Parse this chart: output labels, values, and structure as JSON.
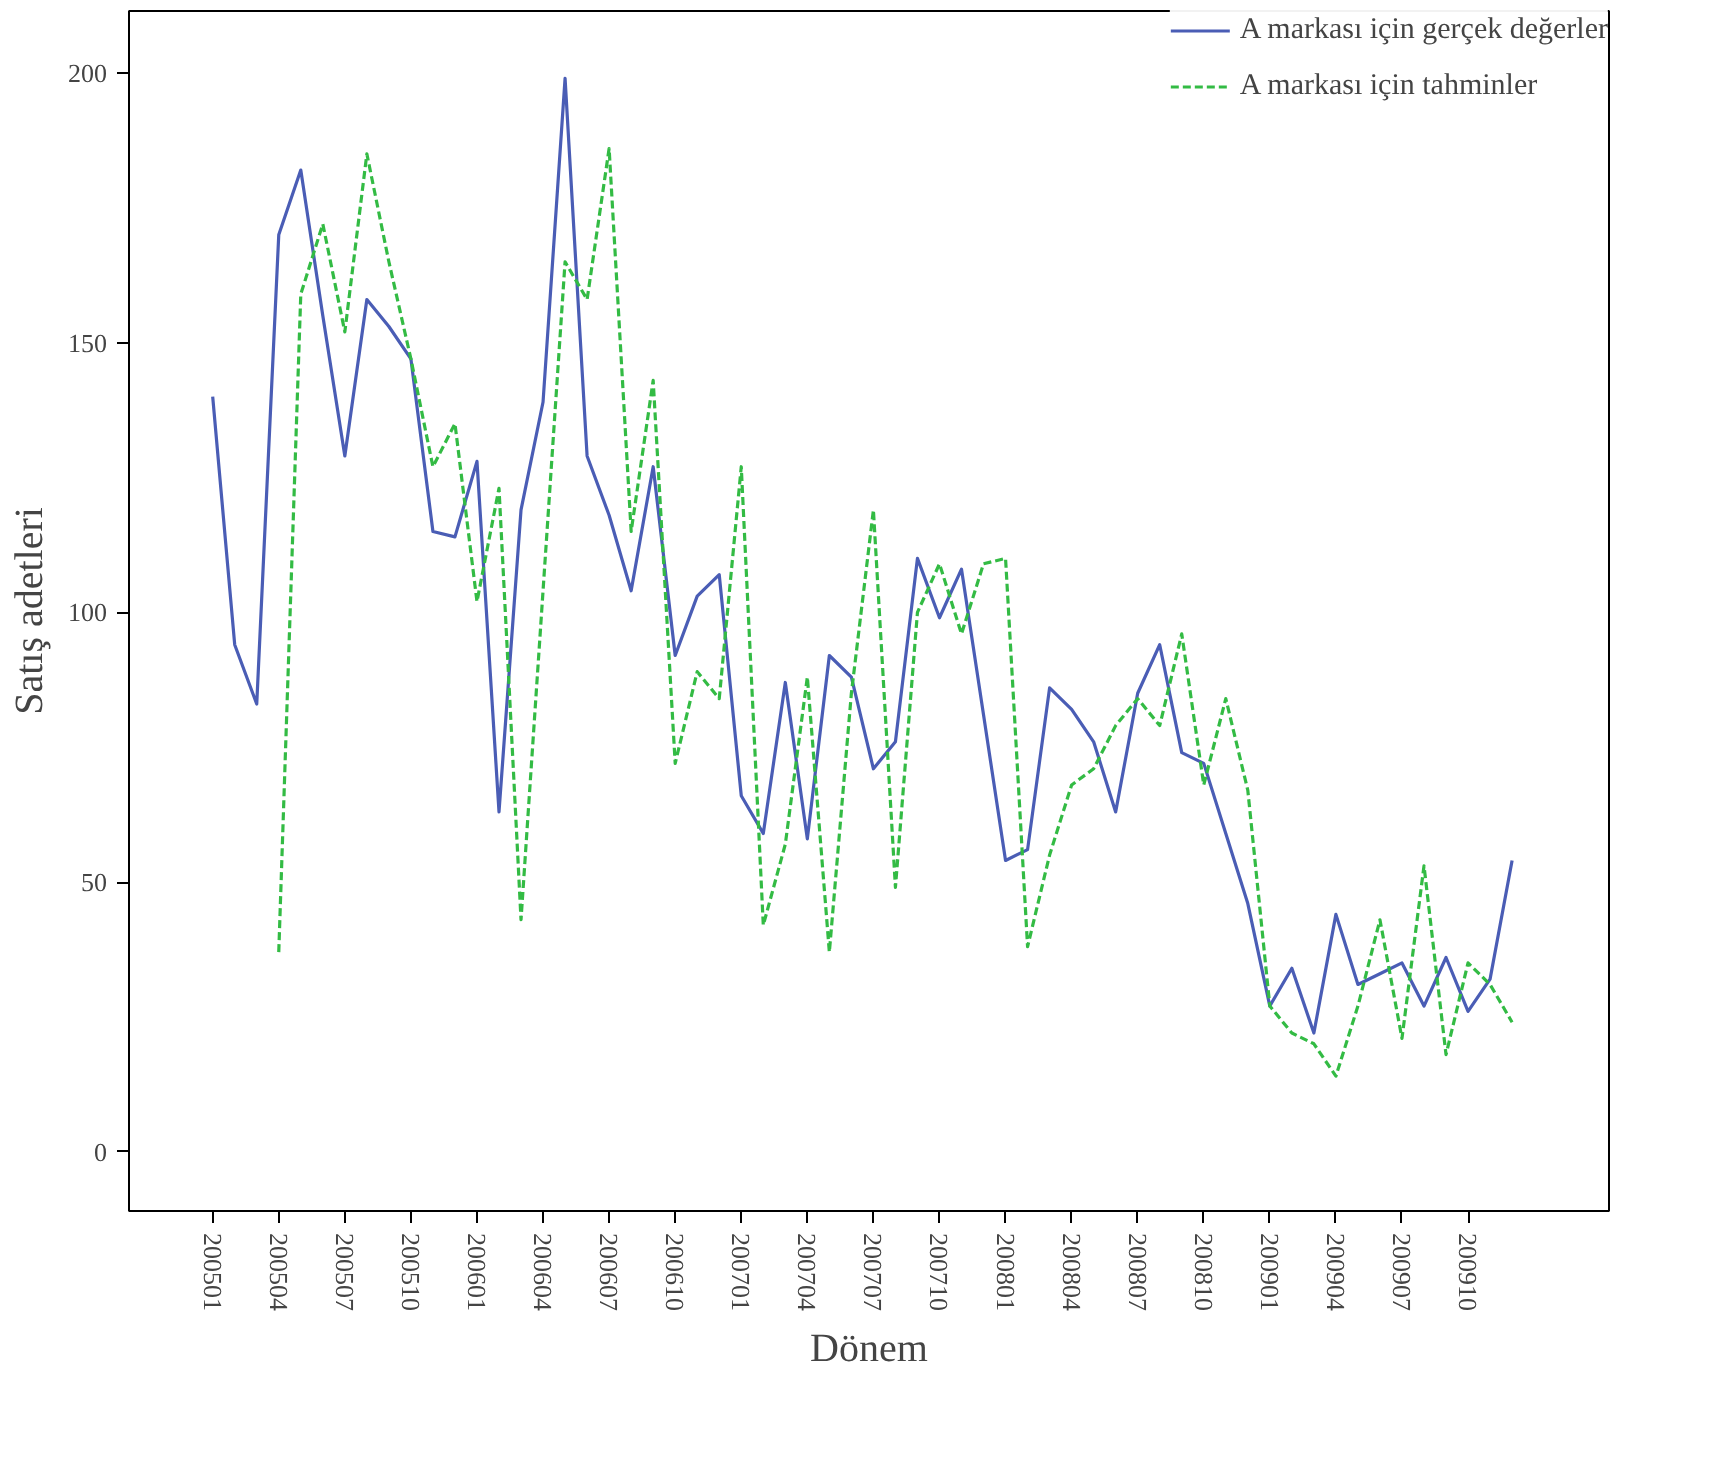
{
  "chart_data": {
    "type": "line",
    "xlabel": "Dönem",
    "ylabel": "Satış adetleri",
    "categories": [
      "200501",
      null,
      null,
      "200504",
      null,
      null,
      "200507",
      null,
      null,
      "200510",
      null,
      null,
      "200601",
      null,
      null,
      "200604",
      null,
      null,
      "200607",
      null,
      null,
      "200610",
      null,
      null,
      "200701",
      null,
      null,
      "200704",
      null,
      null,
      "200707",
      null,
      null,
      "200710",
      null,
      null,
      "200801",
      null,
      null,
      "200804",
      null,
      null,
      "200807",
      null,
      null,
      "200810",
      null,
      null,
      "200901",
      null,
      null,
      "200904",
      null,
      null,
      "200907",
      null,
      null,
      "200910",
      null,
      null
    ],
    "series": [
      {
        "name": "A markası için gerçek değerler",
        "color": "#4a5db5",
        "line_style": "solid",
        "values": [
          140,
          94,
          83,
          170,
          182,
          155,
          129,
          158,
          153,
          147,
          115,
          114,
          128,
          63,
          119,
          139,
          199,
          129,
          118,
          104,
          127,
          92,
          103,
          107,
          66,
          59,
          87,
          58,
          92,
          88,
          71,
          76,
          110,
          99,
          108,
          81,
          54,
          56,
          86,
          82,
          76,
          63,
          85,
          94,
          74,
          72,
          59,
          46,
          27,
          34,
          22,
          44,
          31,
          33,
          35,
          27,
          36,
          26,
          32,
          54
        ]
      },
      {
        "name": "A markası için tahminler",
        "color": "#33bb44",
        "line_style": "dashed",
        "values": [
          null,
          null,
          null,
          37,
          159,
          172,
          152,
          185,
          165,
          147,
          127,
          135,
          102,
          123,
          43,
          104,
          165,
          158,
          186,
          115,
          143,
          72,
          89,
          84,
          127,
          42,
          57,
          88,
          37,
          85,
          119,
          49,
          100,
          109,
          96,
          109,
          110,
          38,
          55,
          68,
          71,
          79,
          84,
          79,
          96,
          68,
          84,
          67,
          27,
          22,
          20,
          14,
          27,
          43,
          21,
          53,
          18,
          35,
          31,
          24
        ]
      }
    ],
    "ylim": [
      -11,
      211.5
    ],
    "yticks": [
      0,
      50,
      100,
      150,
      200
    ],
    "grid": false,
    "legend": "top right",
    "marker": "none"
  }
}
